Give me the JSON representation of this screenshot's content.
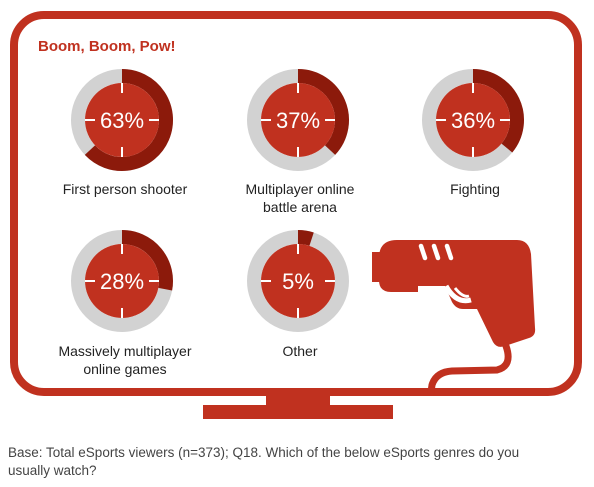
{
  "colors": {
    "accent": "#c0311f",
    "accent_dark": "#8c1a0b",
    "ring_grey": "#d2d2d2",
    "text": "#222222",
    "footnote": "#444444",
    "background": "#ffffff"
  },
  "icons": [
    "tv-frame-icon",
    "light-gun-icon"
  ],
  "chart_data": {
    "type": "pie",
    "title": "Boom, Boom, Pow!",
    "unit": "%",
    "categories": [
      "First person shooter",
      "Multiplayer online battle arena",
      "Fighting",
      "Massively multiplayer online games",
      "Other"
    ],
    "values": [
      63,
      37,
      36,
      28,
      5
    ],
    "value_labels": [
      "63%",
      "37%",
      "36%",
      "28%",
      "5%"
    ]
  },
  "labels": {
    "fps": [
      "First person shooter"
    ],
    "moba": [
      "Multiplayer online",
      "battle arena"
    ],
    "fighting": [
      "Fighting"
    ],
    "mmo": [
      "Massively multiplayer",
      "online games"
    ],
    "other": [
      "Other"
    ]
  },
  "footnote": {
    "line1": "Base: Total eSports viewers (n=373); Q18. Which of the below eSports genres do you",
    "line2": "usually watch?"
  }
}
